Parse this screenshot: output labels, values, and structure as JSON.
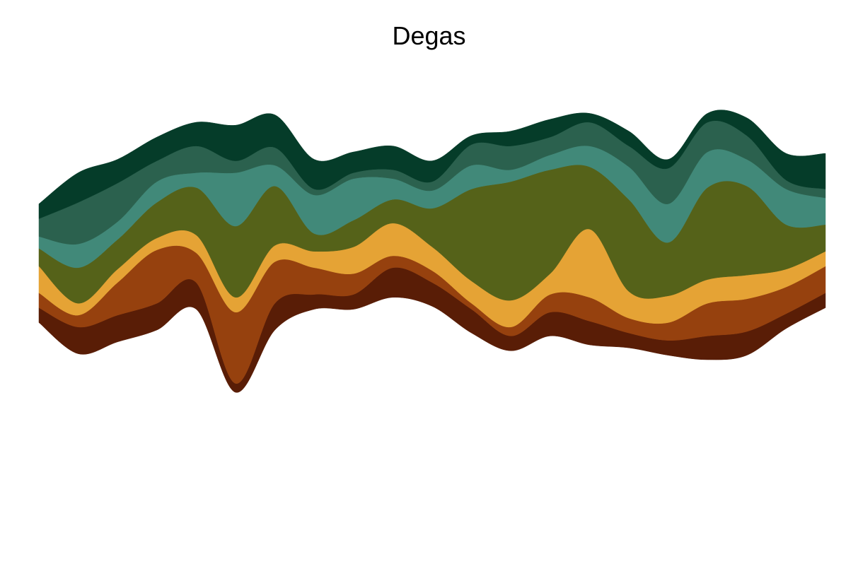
{
  "chart_data": {
    "type": "area",
    "subtype": "streamgraph",
    "title": "Degas",
    "xlabel": "",
    "ylabel": "",
    "grid": false,
    "legend": "none",
    "axes_visible": false,
    "x": [
      0,
      1,
      2,
      3,
      4,
      5,
      6,
      7,
      8,
      9,
      10,
      11,
      12,
      13,
      14,
      15,
      16,
      17,
      18,
      19,
      20
    ],
    "baseline": [
      -1.5,
      -3.6,
      -2.8,
      -2.0,
      -0.6,
      -6.2,
      -2.0,
      -0.6,
      -0.6,
      0.2,
      -0.4,
      -2.2,
      -3.4,
      -2.4,
      -3.0,
      -3.2,
      -3.7,
      -4.0,
      -3.7,
      -1.9,
      -0.5
    ],
    "series": [
      {
        "color": "#591d06",
        "values": [
          1.0,
          1.8,
          1.8,
          1.8,
          1.8,
          0.6,
          1.8,
          1.0,
          1.0,
          2.0,
          1.6,
          1.6,
          1.0,
          1.6,
          1.6,
          1.0,
          1.0,
          1.6,
          1.6,
          1.0,
          1.0
        ]
      },
      {
        "color": "#96410e",
        "values": [
          1.0,
          0.8,
          2.2,
          3.6,
          2.0,
          4.8,
          2.8,
          1.8,
          1.4,
          0.8,
          0.8,
          0.4,
          0.6,
          1.2,
          1.6,
          1.0,
          1.2,
          2.2,
          2.2,
          1.8,
          1.8
        ]
      },
      {
        "color": "#e5a335",
        "values": [
          1.8,
          0.8,
          0.9,
          0.8,
          1.2,
          1.0,
          1.1,
          1.1,
          1.8,
          2.2,
          1.6,
          1.5,
          1.8,
          1.4,
          4.6,
          1.8,
          1.8,
          1.6,
          1.6,
          1.2,
          1.0
        ]
      },
      {
        "color": "#556219",
        "values": [
          1.2,
          2.4,
          2.0,
          2.4,
          3.2,
          4.8,
          4.0,
          1.2,
          1.8,
          1.6,
          2.6,
          6.2,
          8.0,
          7.0,
          4.2,
          6.2,
          3.6,
          6.2,
          6.0,
          3.0,
          1.8
        ]
      },
      {
        "color": "#418979",
        "values": [
          0.8,
          1.6,
          1.2,
          1.4,
          1.0,
          3.6,
          1.4,
          2.6,
          2.8,
          1.4,
          1.2,
          1.6,
          0.8,
          1.0,
          1.4,
          2.2,
          2.6,
          2.4,
          1.8,
          2.4,
          1.8
        ]
      },
      {
        "color": "#2b614e",
        "values": [
          1.2,
          2.8,
          2.6,
          1.4,
          1.8,
          0.8,
          1.2,
          0.4,
          0.4,
          0.6,
          0.6,
          1.4,
          1.6,
          1.2,
          1.6,
          1.4,
          2.4,
          2.0,
          1.6,
          0.6,
          0.6
        ]
      },
      {
        "color": "#053c29",
        "values": [
          1.0,
          2.0,
          1.6,
          1.6,
          1.6,
          2.4,
          2.2,
          2.0,
          1.4,
          1.6,
          1.4,
          0.6,
          1.0,
          1.2,
          0.6,
          1.0,
          0.6,
          0.6,
          1.2,
          1.8,
          2.4
        ]
      }
    ]
  }
}
